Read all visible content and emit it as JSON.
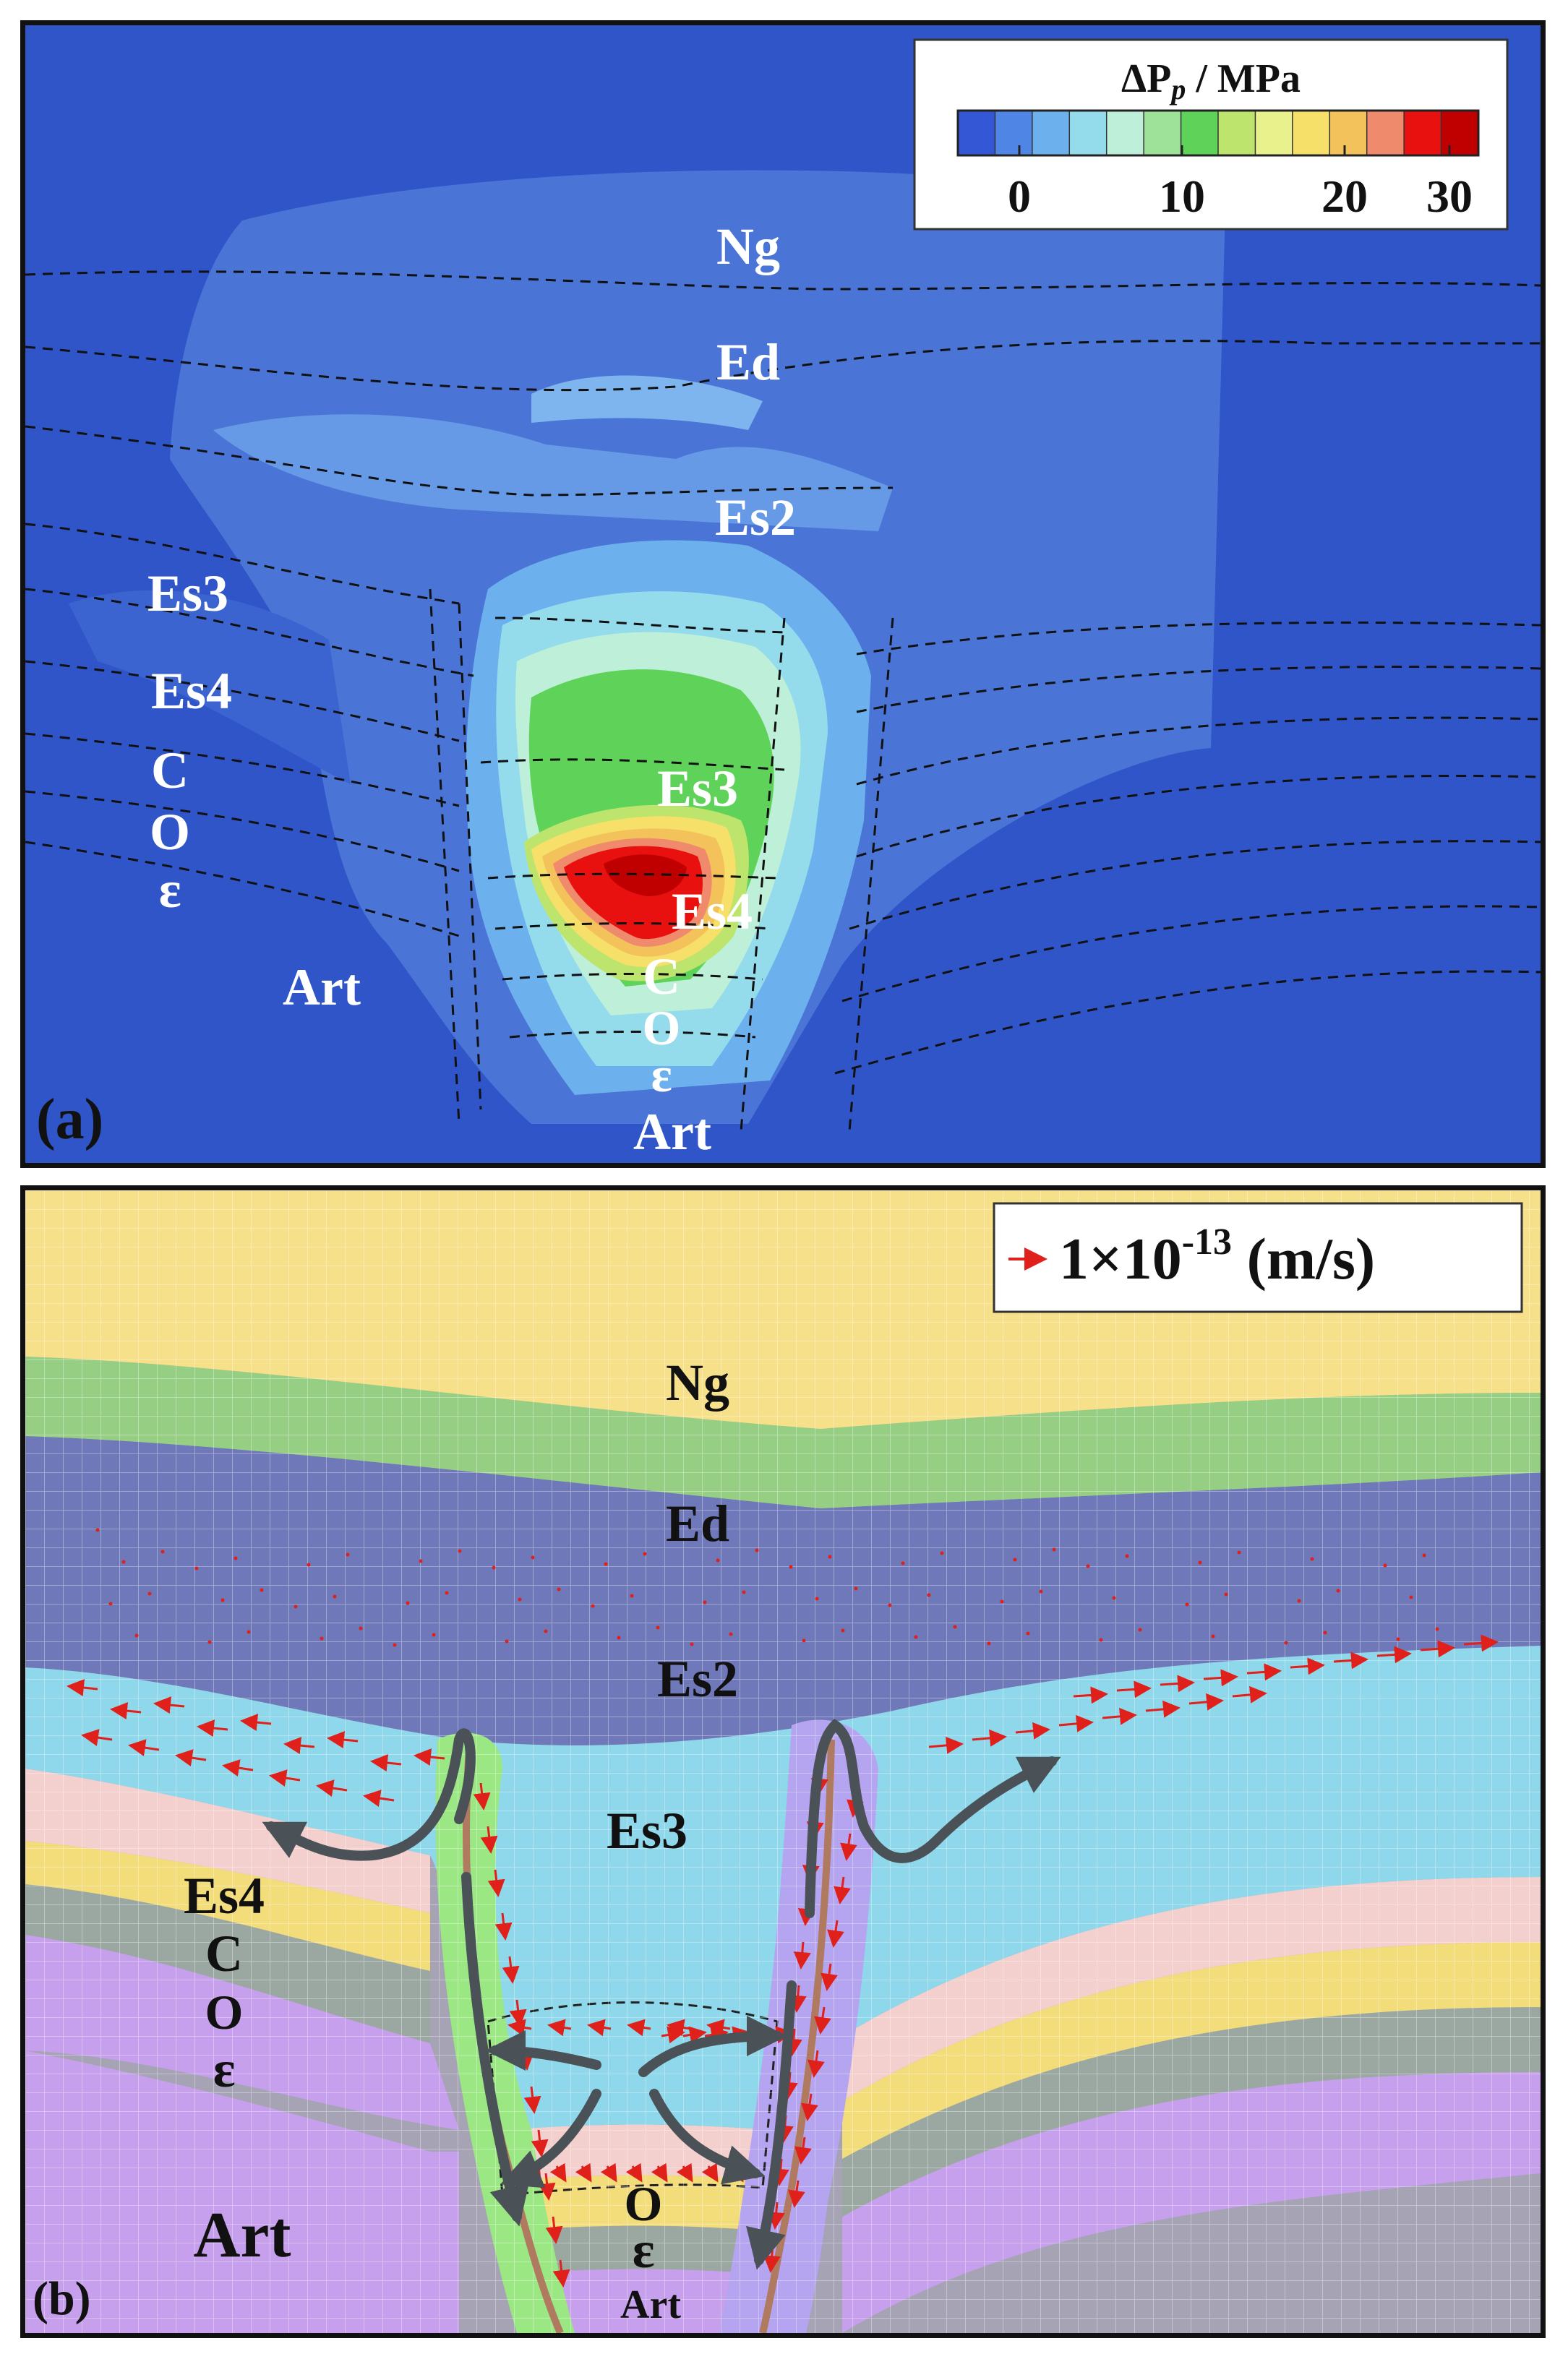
{
  "panel_a": {
    "letter": "(a)",
    "colorbar": {
      "title_delta": "ΔP",
      "title_sub": "p",
      "title_unit": " / MPa",
      "ticks": [
        "0",
        "10",
        "20",
        "30"
      ],
      "colors": [
        "#3457d6",
        "#4f86e6",
        "#6cb1ee",
        "#94dcec",
        "#bdefd9",
        "#9ee29a",
        "#5fd25a",
        "#bde46d",
        "#e8f18c",
        "#f6e06a",
        "#f3c25b",
        "#f08a6c",
        "#e91010",
        "#c00000"
      ]
    },
    "labels": {
      "ng": "Ng",
      "ed": "Ed",
      "es2": "Es2",
      "es3_left": "Es3",
      "es4_left": "Es4",
      "c_left": "C",
      "o_left": "O",
      "e_left": "ɛ",
      "art_left": "Art",
      "es3_center": "Es3",
      "es4_center": "Es4",
      "c_center": "C",
      "o_center": "O",
      "e_center": "ɛ",
      "art_center": "Art"
    }
  },
  "panel_b": {
    "letter": "(b)",
    "legend": {
      "mantissa": "1×10",
      "exponent": "-13",
      "unit": " (m/s)"
    },
    "labels": {
      "ng": "Ng",
      "ed": "Ed",
      "es2": "Es2",
      "es3": "Es3",
      "es4": "Es4",
      "c": "C",
      "o_left": "O",
      "e_left": "ɛ",
      "art_left": "Art",
      "o_center": "O",
      "e_center": "ɛ",
      "art_center": "Art"
    },
    "layer_colors": {
      "ng": "#f7e08a",
      "ed": "#96cf84",
      "es2": "#6f78b8",
      "es3": "#8fd7ea",
      "es4": "#f3cfcd",
      "c": "#f3dc7a",
      "o": "#9ba8a2",
      "e": "#c6a0ec",
      "art": "#a5a3b4",
      "fault_left": "#9be783",
      "fault_right": "#b5a4f0",
      "fault_line": "#b07a60",
      "flow_arrow": "#4a5258",
      "velocity_arrow": "#e0201a"
    }
  }
}
